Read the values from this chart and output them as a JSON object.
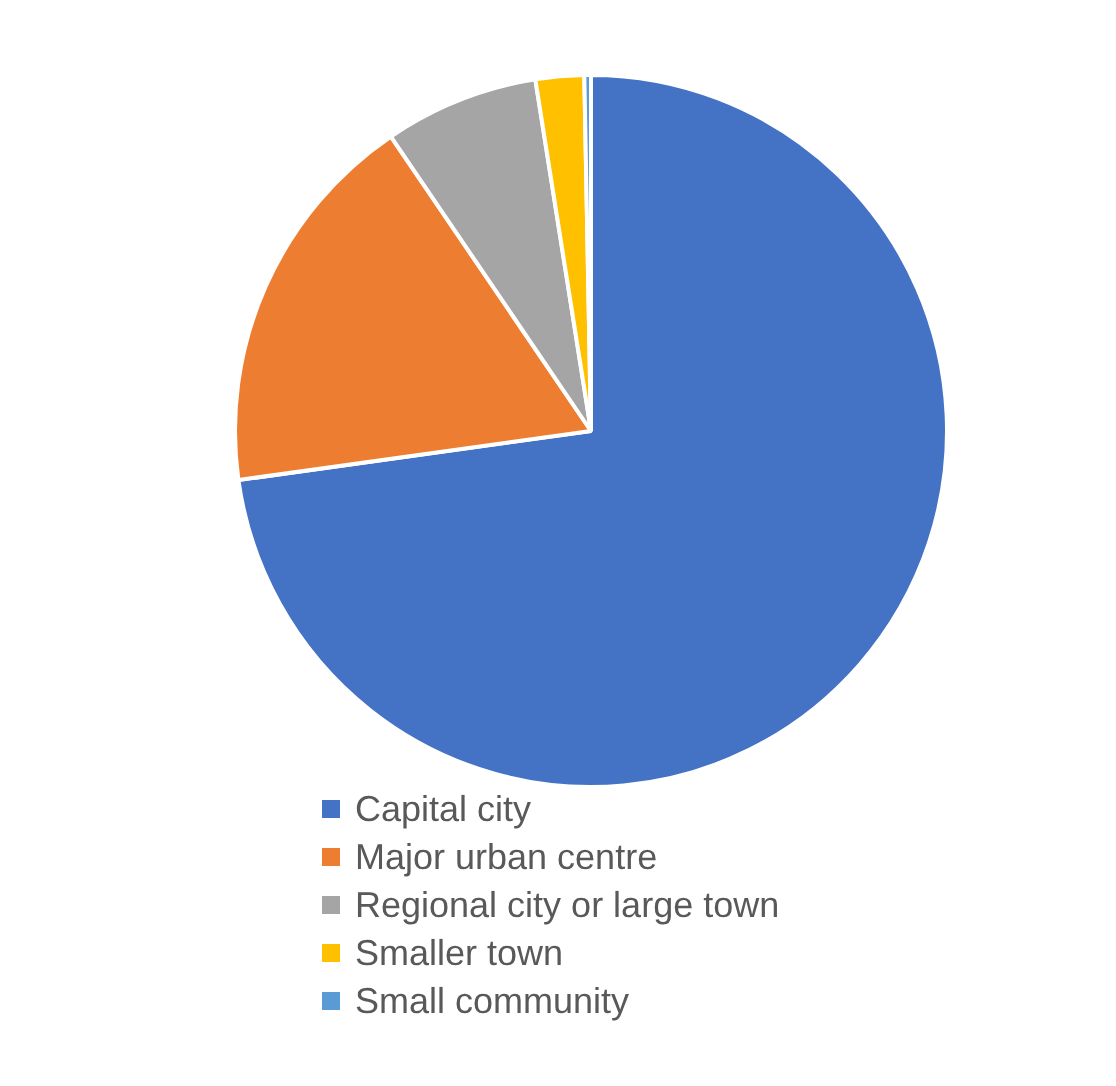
{
  "chart_data": {
    "type": "pie",
    "categories": [
      "Capital city",
      "Major urban centre",
      "Regional city or large town",
      "Smaller town",
      "Small community"
    ],
    "values": [
      72.8,
      17.7,
      7.0,
      2.2,
      0.3
    ],
    "colors": [
      "#4472c4",
      "#ed7d31",
      "#a5a5a5",
      "#ffc000",
      "#5b9bd5"
    ],
    "legend": "bottom"
  }
}
